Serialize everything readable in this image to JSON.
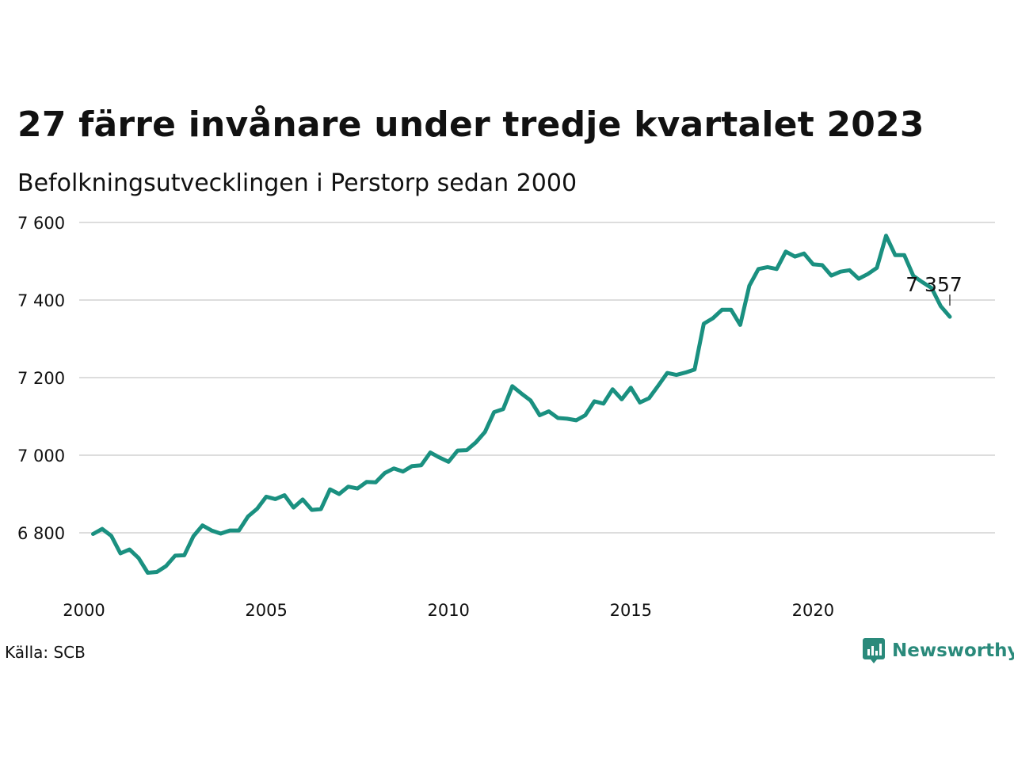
{
  "header": {
    "title": "27 färre invånare under tredje kvartalet 2023",
    "subtitle": "Befolkningsutvecklingen i Perstorp sedan 2000"
  },
  "footer": {
    "source": "Källa: SCB",
    "brand": "Newsworthy"
  },
  "colors": {
    "line": "#1a9080",
    "grid": "#dddddd",
    "text": "#111111",
    "brand": "#2a8a7b"
  },
  "chart_data": {
    "type": "line",
    "title": "27 färre invånare under tredje kvartalet 2023",
    "subtitle": "Befolkningsutvecklingen i Perstorp sedan 2000",
    "xlabel": "",
    "ylabel": "",
    "xlim": [
      2000,
      2024
    ],
    "ylim": [
      6680,
      7640
    ],
    "yticks": [
      6800,
      7000,
      7200,
      7400,
      7600
    ],
    "ytick_labels": [
      "6 800",
      "7 000",
      "7 200",
      "7 400",
      "7 600"
    ],
    "xticks": [
      2000,
      2005,
      2010,
      2015,
      2020
    ],
    "xtick_labels": [
      "2000",
      "2005",
      "2010",
      "2015",
      "2020"
    ],
    "grid": "horizontal",
    "last_value_label": "7 357",
    "series": [
      {
        "x": [
          2000.25,
          2000.5,
          2000.75,
          2001,
          2001.25,
          2001.5,
          2001.75,
          2002,
          2002.25,
          2002.5,
          2002.75,
          2003,
          2003.25,
          2003.5,
          2003.75,
          2004,
          2004.25,
          2004.5,
          2004.75,
          2005,
          2005.25,
          2005.5,
          2005.75,
          2006,
          2006.25,
          2006.5,
          2006.75,
          2007,
          2007.25,
          2007.5,
          2007.75,
          2008,
          2008.25,
          2008.5,
          2008.75,
          2009,
          2009.25,
          2009.5,
          2009.75,
          2010,
          2010.25,
          2010.5,
          2010.75,
          2011,
          2011.25,
          2011.5,
          2011.75,
          2012,
          2012.25,
          2012.5,
          2012.75,
          2013,
          2013.25,
          2013.5,
          2013.75,
          2014,
          2014.25,
          2014.5,
          2014.75,
          2015,
          2015.25,
          2015.5,
          2015.75,
          2016,
          2016.25,
          2016.5,
          2016.75,
          2017,
          2017.25,
          2017.5,
          2017.75,
          2018,
          2018.25,
          2018.5,
          2018.75,
          2019,
          2019.25,
          2019.5,
          2019.75,
          2020,
          2020.25,
          2020.5,
          2020.75,
          2021,
          2021.25,
          2021.5,
          2021.75,
          2022,
          2022.25,
          2022.5,
          2022.75,
          2023,
          2023.25,
          2023.5,
          2023.75
        ],
        "values": [
          6797,
          6810,
          6792,
          6747,
          6757,
          6735,
          6697,
          6699,
          6714,
          6741,
          6742,
          6791,
          6819,
          6806,
          6798,
          6806,
          6806,
          6842,
          6862,
          6893,
          6887,
          6897,
          6865,
          6886,
          6859,
          6861,
          6912,
          6900,
          6919,
          6914,
          6931,
          6930,
          6954,
          6966,
          6958,
          6972,
          6974,
          7007,
          6994,
          6983,
          7012,
          7013,
          7033,
          7060,
          7111,
          7119,
          7178,
          7159,
          7141,
          7103,
          7113,
          7096,
          7094,
          7090,
          7103,
          7139,
          7133,
          7170,
          7144,
          7174,
          7136,
          7147,
          7179,
          7212,
          7207,
          7213,
          7221,
          7339,
          7353,
          7375,
          7375,
          7336,
          7437,
          7480,
          7485,
          7480,
          7525,
          7512,
          7520,
          7492,
          7490,
          7463,
          7473,
          7477,
          7455,
          7467,
          7483,
          7566,
          7516,
          7516,
          7462,
          7446,
          7431,
          7384,
          7357
        ]
      }
    ]
  }
}
